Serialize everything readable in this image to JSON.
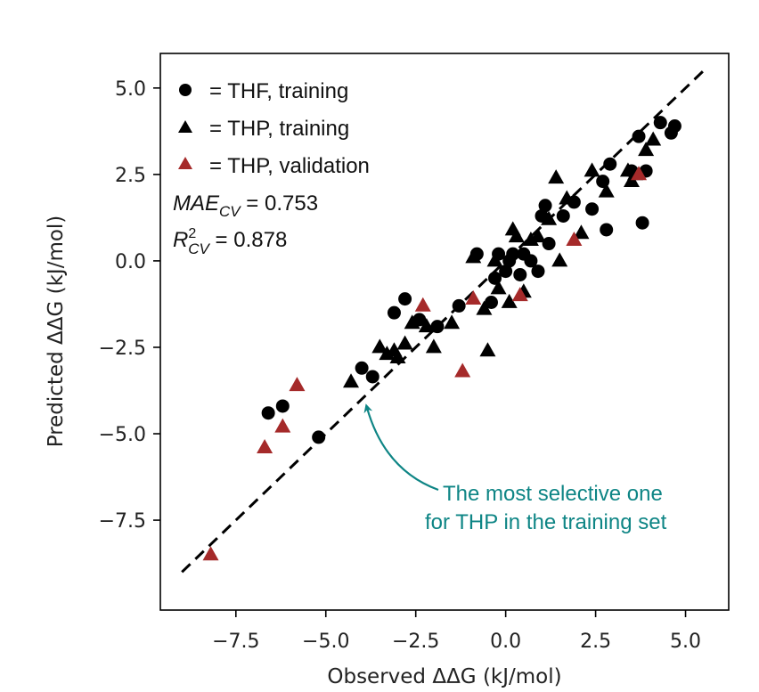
{
  "chart_data": {
    "type": "scatter",
    "title": "",
    "xlabel": "Observed ΔΔG (kJ/mol)",
    "ylabel": "Predicted ΔΔG (kJ/mol)",
    "xlim": [
      -9.6,
      6.2
    ],
    "ylim": [
      -10.1,
      6.0
    ],
    "xticks": [
      -7.5,
      -5.0,
      -2.5,
      0.0,
      2.5,
      5.0
    ],
    "xtick_labels": [
      "−7.5",
      "−5.0",
      "−2.5",
      "0.0",
      "2.5",
      "5.0"
    ],
    "yticks": [
      5.0,
      2.5,
      0.0,
      -2.5,
      -5.0,
      -7.5
    ],
    "ytick_labels": [
      "5.0",
      "2.5",
      "0.0",
      "−2.5",
      "−5.0",
      "−7.5"
    ],
    "grid": false,
    "legend_position": "top-left",
    "legend": [
      {
        "marker": "circle",
        "color": "#000000",
        "label": "= THF, training"
      },
      {
        "marker": "triangle",
        "color": "#000000",
        "label": "= THP, training"
      },
      {
        "marker": "triangle",
        "color": "#a52a2a",
        "label": "= THP, validation"
      }
    ],
    "stats": {
      "mae_main": "MAE",
      "mae_sub": "CV",
      "mae_value": " = 0.753",
      "r2_main": "R",
      "r2_sup": "2",
      "r2_sub": "CV",
      "r2_value": " = 0.878"
    },
    "annotation": {
      "line1": "The most selective one",
      "line2": "for THP in the training set",
      "target": [
        -4.3,
        -4.1
      ],
      "color": "#0e8585"
    },
    "identity_line": {
      "from": [
        -9.0,
        -9.0
      ],
      "to": [
        5.6,
        5.6
      ],
      "style": "dashed"
    },
    "series": [
      {
        "name": "THF, training",
        "marker": "circle",
        "color": "#000000",
        "points": [
          [
            -6.6,
            -4.4
          ],
          [
            -6.2,
            -4.2
          ],
          [
            -5.2,
            -5.1
          ],
          [
            -4.0,
            -3.1
          ],
          [
            -3.7,
            -3.35
          ],
          [
            -3.1,
            -1.5
          ],
          [
            -2.8,
            -1.1
          ],
          [
            -2.4,
            -1.7
          ],
          [
            -1.9,
            -1.9
          ],
          [
            -1.3,
            -1.3
          ],
          [
            -0.8,
            0.2
          ],
          [
            -0.4,
            -1.2
          ],
          [
            -0.3,
            -0.5
          ],
          [
            -0.2,
            0.2
          ],
          [
            0.0,
            -0.3
          ],
          [
            0.1,
            0.0
          ],
          [
            0.2,
            0.2
          ],
          [
            0.4,
            -0.4
          ],
          [
            0.5,
            0.2
          ],
          [
            0.7,
            0.0
          ],
          [
            0.9,
            -0.3
          ],
          [
            1.0,
            1.3
          ],
          [
            1.1,
            1.6
          ],
          [
            1.2,
            0.5
          ],
          [
            1.6,
            1.3
          ],
          [
            1.9,
            1.7
          ],
          [
            2.4,
            1.5
          ],
          [
            2.7,
            2.3
          ],
          [
            2.9,
            2.8
          ],
          [
            2.8,
            0.9
          ],
          [
            3.5,
            2.6
          ],
          [
            3.7,
            3.6
          ],
          [
            3.8,
            1.1
          ],
          [
            3.9,
            2.6
          ],
          [
            4.3,
            4.0
          ],
          [
            4.6,
            3.7
          ],
          [
            4.7,
            3.9
          ]
        ]
      },
      {
        "name": "THP, training",
        "marker": "triangle",
        "color": "#000000",
        "points": [
          [
            -4.3,
            -3.5
          ],
          [
            -3.5,
            -2.5
          ],
          [
            -3.3,
            -2.7
          ],
          [
            -3.1,
            -2.6
          ],
          [
            -3.0,
            -2.8
          ],
          [
            -2.8,
            -2.4
          ],
          [
            -2.6,
            -1.8
          ],
          [
            -2.2,
            -1.9
          ],
          [
            -2.0,
            -2.5
          ],
          [
            -1.5,
            -1.8
          ],
          [
            -0.9,
            0.1
          ],
          [
            -0.6,
            -1.4
          ],
          [
            -0.5,
            -2.6
          ],
          [
            -0.3,
            0.0
          ],
          [
            -0.2,
            -0.8
          ],
          [
            0.1,
            -1.2
          ],
          [
            0.2,
            0.9
          ],
          [
            0.3,
            0.7
          ],
          [
            0.5,
            -0.9
          ],
          [
            0.7,
            0.6
          ],
          [
            0.9,
            0.7
          ],
          [
            1.2,
            1.2
          ],
          [
            1.4,
            2.4
          ],
          [
            1.5,
            0.0
          ],
          [
            1.7,
            1.8
          ],
          [
            2.1,
            0.8
          ],
          [
            2.4,
            2.6
          ],
          [
            2.8,
            2.0
          ],
          [
            3.4,
            2.6
          ],
          [
            3.5,
            2.3
          ],
          [
            3.6,
            2.5
          ],
          [
            3.9,
            3.2
          ],
          [
            4.1,
            3.5
          ]
        ]
      },
      {
        "name": "THP, validation",
        "marker": "triangle",
        "color": "#a52a2a",
        "points": [
          [
            -8.2,
            -8.5
          ],
          [
            -6.7,
            -5.4
          ],
          [
            -6.2,
            -4.8
          ],
          [
            -5.8,
            -3.6
          ],
          [
            -2.3,
            -1.3
          ],
          [
            -1.2,
            -3.2
          ],
          [
            -0.9,
            -1.1
          ],
          [
            0.4,
            -1.0
          ],
          [
            1.9,
            0.6
          ],
          [
            3.7,
            2.5
          ]
        ]
      }
    ]
  }
}
